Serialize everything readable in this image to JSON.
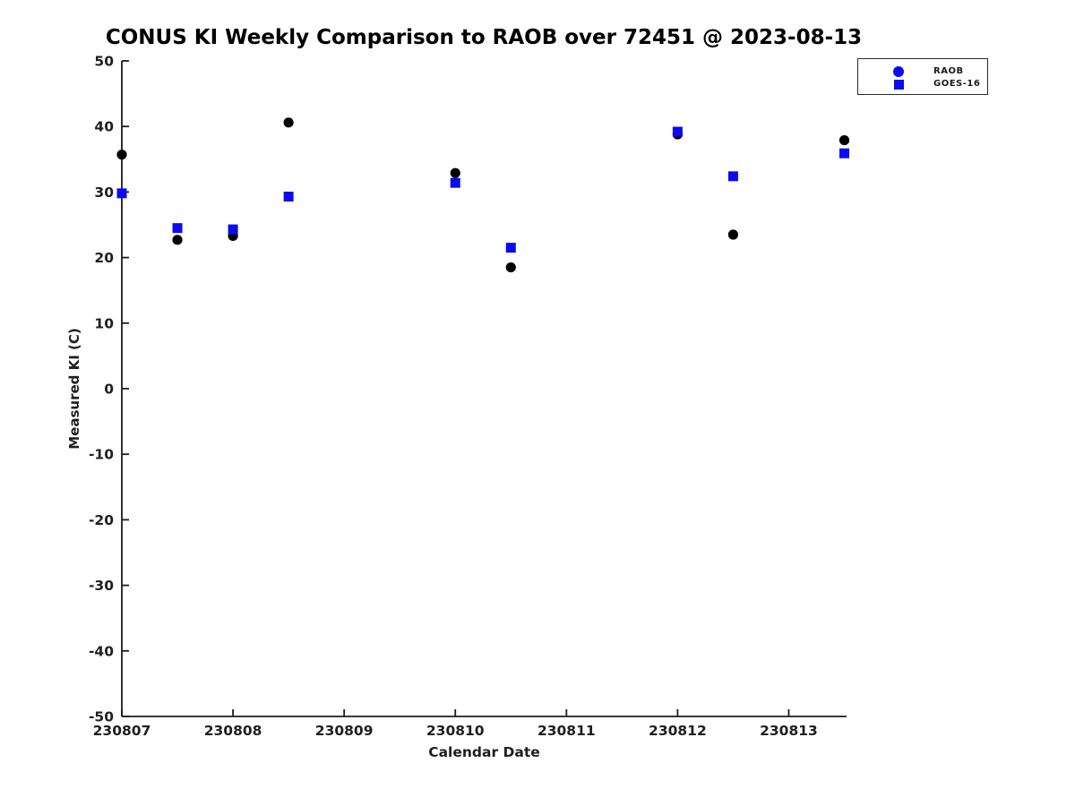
{
  "chart_data": {
    "type": "scatter",
    "title": "CONUS KI Weekly Comparison to RAOB over 72451 @ 2023-08-13",
    "xlabel": "Calendar Date",
    "ylabel": "Measured KI (C)",
    "xlim": [
      230807,
      230813.52
    ],
    "ylim": [
      -50,
      50
    ],
    "x_tick_values": [
      230807,
      230808,
      230809,
      230810,
      230811,
      230812,
      230813
    ],
    "x_tick_labels": [
      "230807",
      "230808",
      "230809",
      "230810",
      "230811",
      "230812",
      "230813"
    ],
    "y_tick_values": [
      50,
      40,
      30,
      20,
      10,
      0,
      -10,
      -20,
      -30,
      -40,
      -50
    ],
    "y_tick_labels": [
      "50",
      "40",
      "30",
      "20",
      "10",
      "0",
      "-10",
      "-20",
      "-30",
      "-40",
      "-50"
    ],
    "grid": false,
    "legend_position": "top-right",
    "axis_color": "#1c1c1c",
    "series": [
      {
        "name": "RAOB",
        "marker": "circle",
        "color": "#000000",
        "legend_color": "#0b0bee",
        "x": [
          230807,
          230807.5,
          230808,
          230808.5,
          230810,
          230810.5,
          230812,
          230812.5,
          230813.5
        ],
        "y": [
          35.7,
          22.7,
          23.3,
          40.6,
          32.9,
          18.5,
          38.8,
          23.5,
          37.9
        ]
      },
      {
        "name": "GOES-16",
        "marker": "square",
        "color": "#0b0bee",
        "legend_color": "#0b0bee",
        "x": [
          230807,
          230807.5,
          230808,
          230808.5,
          230810,
          230810.5,
          230812,
          230812.5,
          230813.5
        ],
        "y": [
          29.8,
          24.5,
          24.3,
          29.3,
          31.4,
          21.5,
          39.2,
          32.4,
          35.9
        ]
      }
    ]
  }
}
